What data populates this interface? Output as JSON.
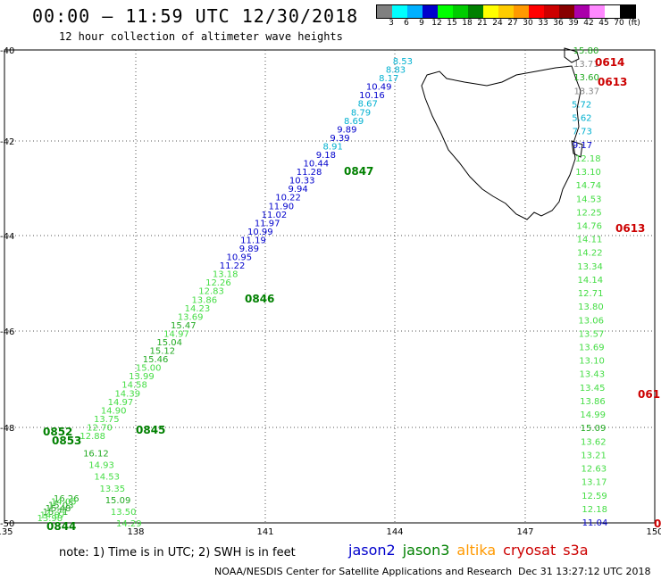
{
  "title": "00:00 – 11:59 UTC 12/30/2018",
  "subtitle": "12 hour collection of altimeter wave heights",
  "colorbar": {
    "colors": [
      "#808080",
      "#00ffff",
      "#00b0ff",
      "#0000cc",
      "#00ff00",
      "#00cc00",
      "#008000",
      "#ffff00",
      "#ffcc00",
      "#ff9900",
      "#ff0000",
      "#cc0000",
      "#880000",
      "#aa00aa",
      "#ff88ff",
      "#ffffff",
      "#000000"
    ],
    "ticks": [
      "3",
      "6",
      "9",
      "12",
      "15",
      "18",
      "21",
      "24",
      "27",
      "30",
      "33",
      "36",
      "39",
      "42",
      "45",
      "70",
      "(ft)"
    ]
  },
  "axes": {
    "lat_labels": [
      "-40",
      "-42",
      "-44",
      "-46",
      "-48",
      "-50"
    ],
    "lon_labels": [
      "135",
      "138",
      "141",
      "144",
      "147",
      "150"
    ]
  },
  "points": [
    {
      "t": "8.53",
      "c": "#00b0d0"
    },
    {
      "t": "8.83",
      "c": "#00b0d0"
    },
    {
      "t": "8.17",
      "c": "#00b0d0"
    },
    {
      "t": "10.49",
      "c": "#0000cc"
    },
    {
      "t": "10.16",
      "c": "#0000cc"
    },
    {
      "t": "8.67",
      "c": "#00b0d0"
    },
    {
      "t": "8.79",
      "c": "#00b0d0"
    },
    {
      "t": "8.69",
      "c": "#00b0d0"
    },
    {
      "t": "9.89",
      "c": "#0000cc"
    },
    {
      "t": "9.39",
      "c": "#0000cc"
    },
    {
      "t": "8.91",
      "c": "#00b0d0"
    },
    {
      "t": "9.18",
      "c": "#0000cc"
    },
    {
      "t": "10.44",
      "c": "#0000cc"
    },
    {
      "t": "11.28",
      "c": "#0000cc"
    },
    {
      "t": "10.33",
      "c": "#0000cc"
    },
    {
      "t": "9.94",
      "c": "#0000cc"
    },
    {
      "t": "10.22",
      "c": "#0000cc"
    },
    {
      "t": "11.90",
      "c": "#0000cc"
    },
    {
      "t": "11.02",
      "c": "#0000cc"
    },
    {
      "t": "11.97",
      "c": "#0000cc"
    },
    {
      "t": "10.99",
      "c": "#0000cc"
    },
    {
      "t": "11.19",
      "c": "#0000cc"
    },
    {
      "t": "9.89",
      "c": "#0000cc"
    },
    {
      "t": "10.95",
      "c": "#0000cc"
    },
    {
      "t": "11.22",
      "c": "#0000cc"
    },
    {
      "t": "13.18",
      "c": "#44dd44"
    },
    {
      "t": "12.26",
      "c": "#44dd44"
    },
    {
      "t": "12.83",
      "c": "#44dd44"
    },
    {
      "t": "13.86",
      "c": "#44dd44"
    },
    {
      "t": "14.23",
      "c": "#44dd44"
    },
    {
      "t": "13.69",
      "c": "#44dd44"
    },
    {
      "t": "15.47",
      "c": "#22aa22"
    },
    {
      "t": "14.97",
      "c": "#44dd44"
    },
    {
      "t": "15.04",
      "c": "#22aa22"
    },
    {
      "t": "15.12",
      "c": "#22aa22"
    },
    {
      "t": "15.46",
      "c": "#22aa22"
    },
    {
      "t": "15.00",
      "c": "#44dd44"
    },
    {
      "t": "13.99",
      "c": "#44dd44"
    },
    {
      "t": "14.58",
      "c": "#44dd44"
    },
    {
      "t": "14.39",
      "c": "#44dd44"
    },
    {
      "t": "14.97",
      "c": "#44dd44"
    },
    {
      "t": "14.90",
      "c": "#44dd44"
    },
    {
      "t": "13.75",
      "c": "#44dd44"
    },
    {
      "t": "12.70",
      "c": "#44dd44"
    },
    {
      "t": "12.88",
      "c": "#44dd44"
    }
  ],
  "points2": [
    {
      "t": "15.80",
      "c": "#22aa22"
    },
    {
      "t": "13.71",
      "c": "#888888"
    },
    {
      "t": "13.60",
      "c": "#22aa22"
    },
    {
      "t": "13.37",
      "c": "#888888"
    },
    {
      "t": "5.72",
      "c": "#00b0d0"
    },
    {
      "t": "5.62",
      "c": "#00b0d0"
    },
    {
      "t": "7.73",
      "c": "#00b0d0"
    },
    {
      "t": "9.17",
      "c": "#0000cc"
    },
    {
      "t": "12.18",
      "c": "#44dd44"
    },
    {
      "t": "13.10",
      "c": "#44dd44"
    },
    {
      "t": "14.74",
      "c": "#44dd44"
    },
    {
      "t": "14.53",
      "c": "#44dd44"
    },
    {
      "t": "12.25",
      "c": "#44dd44"
    },
    {
      "t": "14.76",
      "c": "#44dd44"
    },
    {
      "t": "14.11",
      "c": "#44dd44"
    },
    {
      "t": "14.22",
      "c": "#44dd44"
    },
    {
      "t": "13.34",
      "c": "#44dd44"
    },
    {
      "t": "14.14",
      "c": "#44dd44"
    },
    {
      "t": "12.71",
      "c": "#44dd44"
    },
    {
      "t": "13.80",
      "c": "#44dd44"
    },
    {
      "t": "13.06",
      "c": "#44dd44"
    },
    {
      "t": "13.57",
      "c": "#44dd44"
    },
    {
      "t": "13.69",
      "c": "#44dd44"
    },
    {
      "t": "13.10",
      "c": "#44dd44"
    },
    {
      "t": "13.43",
      "c": "#44dd44"
    },
    {
      "t": "13.45",
      "c": "#44dd44"
    },
    {
      "t": "13.86",
      "c": "#44dd44"
    },
    {
      "t": "14.99",
      "c": "#44dd44"
    },
    {
      "t": "15.09",
      "c": "#22aa22"
    },
    {
      "t": "13.62",
      "c": "#44dd44"
    },
    {
      "t": "13.21",
      "c": "#44dd44"
    },
    {
      "t": "12.63",
      "c": "#44dd44"
    },
    {
      "t": "13.17",
      "c": "#44dd44"
    },
    {
      "t": "12.59",
      "c": "#44dd44"
    },
    {
      "t": "12.18",
      "c": "#44dd44"
    },
    {
      "t": "11.04",
      "c": "#0000cc"
    }
  ],
  "cluster": [
    {
      "t": "16.26",
      "c": "#22aa22"
    },
    {
      "t": "16.12",
      "c": "#22aa22"
    },
    {
      "t": "14.05",
      "c": "#44dd44"
    },
    {
      "t": "14.93",
      "c": "#44dd44"
    },
    {
      "t": "15.03",
      "c": "#22aa22"
    },
    {
      "t": "14.53",
      "c": "#44dd44"
    },
    {
      "t": "15.48",
      "c": "#22aa22"
    },
    {
      "t": "13.35",
      "c": "#44dd44"
    },
    {
      "t": "15.71",
      "c": "#22aa22"
    },
    {
      "t": "15.09",
      "c": "#22aa22"
    },
    {
      "t": "14.87",
      "c": "#44dd44"
    },
    {
      "t": "13.50",
      "c": "#44dd44"
    },
    {
      "t": "13.98",
      "c": "#44dd44"
    },
    {
      "t": "14.29",
      "c": "#44dd44"
    }
  ],
  "pass_labels": [
    {
      "t": "0847",
      "c": "#008000"
    },
    {
      "t": "0846",
      "c": "#008000"
    },
    {
      "t": "0845",
      "c": "#008000"
    },
    {
      "t": "0844",
      "c": "#008000"
    },
    {
      "t": "0852",
      "c": "#008000"
    },
    {
      "t": "0853",
      "c": "#008000"
    },
    {
      "t": "0614",
      "c": "#cc0000"
    },
    {
      "t": "0613",
      "c": "#cc0000"
    },
    {
      "t": "0613",
      "c": "#cc0000"
    },
    {
      "t": "061",
      "c": "#cc0000"
    },
    {
      "t": "0",
      "c": "#cc0000"
    }
  ],
  "note": "note: 1) Time is in UTC; 2) SWH is in feet",
  "legend": [
    {
      "t": "jason2",
      "c": "#0000cc"
    },
    {
      "t": "jason3",
      "c": "#008000"
    },
    {
      "t": "altika",
      "c": "#ff9900"
    },
    {
      "t": "cryosat",
      "c": "#cc0000"
    },
    {
      "t": "s3a",
      "c": "#cc0000"
    }
  ],
  "footer": "NOAA/NESDIS Center for Satellite Applications and Research",
  "timestamp": "Dec 31 13:27:12 UTC 2018"
}
